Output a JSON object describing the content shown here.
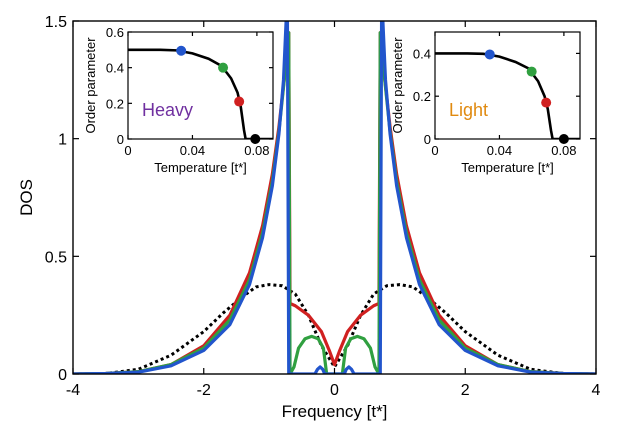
{
  "chart_data": [
    {
      "type": "line",
      "xlabel": "Frequency [t*]",
      "ylabel": "DOS",
      "xlim": [
        -4,
        4
      ],
      "ylim": [
        0,
        1.5
      ],
      "xticks": [
        -4,
        -2,
        0,
        2,
        4
      ],
      "yticks": [
        0,
        0.5,
        1,
        1.5
      ],
      "xtick_labels": [
        "-4",
        "-2",
        "0",
        "2",
        "4"
      ],
      "ytick_labels": [
        "0",
        "0.5",
        "1",
        "1.5"
      ],
      "series": [
        {
          "color": "#000000",
          "style": "dashed",
          "points": [
            [
              -4,
              0
            ],
            [
              -3.5,
              0.002
            ],
            [
              -3,
              0.02
            ],
            [
              -2.5,
              0.08
            ],
            [
              -2,
              0.18
            ],
            [
              -1.7,
              0.26
            ],
            [
              -1.4,
              0.33
            ],
            [
              -1.2,
              0.37
            ],
            [
              -1.0,
              0.38
            ],
            [
              -0.8,
              0.375
            ],
            [
              -0.6,
              0.34
            ],
            [
              -0.4,
              0.25
            ],
            [
              -0.2,
              0.12
            ],
            [
              0,
              0.03
            ],
            [
              0.2,
              0.12
            ],
            [
              0.4,
              0.25
            ],
            [
              0.6,
              0.34
            ],
            [
              0.8,
              0.375
            ],
            [
              1.0,
              0.38
            ],
            [
              1.2,
              0.37
            ],
            [
              1.4,
              0.33
            ],
            [
              1.7,
              0.26
            ],
            [
              2,
              0.18
            ],
            [
              2.5,
              0.08
            ],
            [
              3,
              0.02
            ],
            [
              3.5,
              0.002
            ],
            [
              4,
              0
            ]
          ]
        },
        {
          "color": "#d02020",
          "style": "solid",
          "points": [
            [
              -4,
              0
            ],
            [
              -3.5,
              0.002
            ],
            [
              -3,
              0.01
            ],
            [
              -2.5,
              0.04
            ],
            [
              -2,
              0.12
            ],
            [
              -1.6,
              0.25
            ],
            [
              -1.3,
              0.43
            ],
            [
              -1.1,
              0.63
            ],
            [
              -0.95,
              0.85
            ],
            [
              -0.85,
              1.05
            ],
            [
              -0.75,
              1.3
            ],
            [
              -0.7,
              1.45
            ],
            [
              -0.68,
              0.3
            ],
            [
              -0.6,
              0.29
            ],
            [
              -0.4,
              0.25
            ],
            [
              -0.2,
              0.18
            ],
            [
              -0.08,
              0.1
            ],
            [
              0,
              0.04
            ],
            [
              0.08,
              0.1
            ],
            [
              0.2,
              0.18
            ],
            [
              0.4,
              0.25
            ],
            [
              0.6,
              0.29
            ],
            [
              0.68,
              0.3
            ],
            [
              0.7,
              1.45
            ],
            [
              0.75,
              1.3
            ],
            [
              0.85,
              1.05
            ],
            [
              0.95,
              0.85
            ],
            [
              1.1,
              0.63
            ],
            [
              1.3,
              0.43
            ],
            [
              1.6,
              0.25
            ],
            [
              2,
              0.12
            ],
            [
              2.5,
              0.04
            ],
            [
              3,
              0.01
            ],
            [
              3.5,
              0.002
            ],
            [
              4,
              0
            ]
          ]
        },
        {
          "color": "#30a040",
          "style": "solid",
          "points": [
            [
              -4,
              0
            ],
            [
              -3.5,
              0.002
            ],
            [
              -3,
              0.01
            ],
            [
              -2.5,
              0.04
            ],
            [
              -2,
              0.11
            ],
            [
              -1.6,
              0.23
            ],
            [
              -1.3,
              0.4
            ],
            [
              -1.1,
              0.6
            ],
            [
              -0.95,
              0.82
            ],
            [
              -0.85,
              1.03
            ],
            [
              -0.75,
              1.3
            ],
            [
              -0.7,
              1.45
            ],
            [
              -0.68,
              0
            ],
            [
              -0.62,
              0.03
            ],
            [
              -0.55,
              0.11
            ],
            [
              -0.45,
              0.15
            ],
            [
              -0.35,
              0.16
            ],
            [
              -0.25,
              0.15
            ],
            [
              -0.17,
              0.11
            ],
            [
              -0.12,
              0
            ],
            [
              0.12,
              0
            ],
            [
              0.17,
              0.11
            ],
            [
              0.25,
              0.15
            ],
            [
              0.35,
              0.16
            ],
            [
              0.45,
              0.15
            ],
            [
              0.55,
              0.11
            ],
            [
              0.62,
              0.03
            ],
            [
              0.68,
              0
            ],
            [
              0.7,
              1.45
            ],
            [
              0.75,
              1.3
            ],
            [
              0.85,
              1.03
            ],
            [
              0.95,
              0.82
            ],
            [
              1.1,
              0.6
            ],
            [
              1.3,
              0.4
            ],
            [
              1.6,
              0.23
            ],
            [
              2,
              0.11
            ],
            [
              2.5,
              0.04
            ],
            [
              3,
              0.01
            ],
            [
              3.5,
              0.002
            ],
            [
              4,
              0
            ]
          ]
        },
        {
          "color": "#2255cc",
          "style": "solid",
          "points": [
            [
              -4,
              0
            ],
            [
              -3.5,
              0.002
            ],
            [
              -3,
              0.008
            ],
            [
              -2.5,
              0.035
            ],
            [
              -2,
              0.1
            ],
            [
              -1.6,
              0.21
            ],
            [
              -1.3,
              0.38
            ],
            [
              -1.1,
              0.58
            ],
            [
              -0.95,
              0.8
            ],
            [
              -0.85,
              1.02
            ],
            [
              -0.78,
              1.25
            ],
            [
              -0.74,
              1.5
            ],
            [
              -0.72,
              1.5
            ],
            [
              -0.7,
              0
            ],
            [
              -0.3,
              0
            ],
            [
              -0.26,
              0.02
            ],
            [
              -0.22,
              0.03
            ],
            [
              -0.18,
              0.02
            ],
            [
              -0.15,
              0
            ],
            [
              0.15,
              0
            ],
            [
              0.18,
              0.02
            ],
            [
              0.22,
              0.03
            ],
            [
              0.26,
              0.02
            ],
            [
              0.3,
              0
            ],
            [
              0.7,
              0
            ],
            [
              0.72,
              1.5
            ],
            [
              0.74,
              1.5
            ],
            [
              0.78,
              1.25
            ],
            [
              0.85,
              1.02
            ],
            [
              0.95,
              0.8
            ],
            [
              1.1,
              0.58
            ],
            [
              1.3,
              0.38
            ],
            [
              1.6,
              0.21
            ],
            [
              2,
              0.1
            ],
            [
              2.5,
              0.035
            ],
            [
              3,
              0.008
            ],
            [
              3.5,
              0.002
            ],
            [
              4,
              0
            ]
          ]
        }
      ]
    },
    {
      "type": "line",
      "xlabel": "Temperature [t*]",
      "ylabel": "Order parameter",
      "annotation": "Heavy",
      "annotation_color": "#7030a0",
      "xlim": [
        0,
        0.09
      ],
      "ylim": [
        0,
        0.6
      ],
      "xticks": [
        0,
        0.04,
        0.08
      ],
      "yticks": [
        0,
        0.2,
        0.4,
        0.6
      ],
      "xtick_labels": [
        "0",
        "0.04",
        "0.08"
      ],
      "ytick_labels": [
        "0",
        "0.2",
        "0.4",
        "0.6"
      ],
      "curve": [
        [
          0,
          0.5
        ],
        [
          0.01,
          0.5
        ],
        [
          0.02,
          0.5
        ],
        [
          0.03,
          0.497
        ],
        [
          0.04,
          0.48
        ],
        [
          0.05,
          0.45
        ],
        [
          0.058,
          0.41
        ],
        [
          0.064,
          0.34
        ],
        [
          0.068,
          0.26
        ],
        [
          0.07,
          0.18
        ],
        [
          0.072,
          0.05
        ],
        [
          0.073,
          0
        ],
        [
          0.09,
          0
        ]
      ],
      "markers": [
        {
          "x": 0.033,
          "y": 0.495,
          "color": "#2255cc"
        },
        {
          "x": 0.059,
          "y": 0.4,
          "color": "#30a040"
        },
        {
          "x": 0.069,
          "y": 0.21,
          "color": "#d02020"
        },
        {
          "x": 0.079,
          "y": 0,
          "color": "#000000"
        }
      ]
    },
    {
      "type": "line",
      "xlabel": "Temperature [t*]",
      "ylabel": "Order parameter",
      "annotation": "Light",
      "annotation_color": "#e08a10",
      "xlim": [
        0,
        0.09
      ],
      "ylim": [
        0,
        0.5
      ],
      "xticks": [
        0,
        0.04,
        0.08
      ],
      "yticks": [
        0,
        0.2,
        0.4
      ],
      "xtick_labels": [
        "0",
        "0.04",
        "0.08"
      ],
      "ytick_labels": [
        "0",
        "0.2",
        "0.4"
      ],
      "curve": [
        [
          0,
          0.4
        ],
        [
          0.01,
          0.4
        ],
        [
          0.02,
          0.4
        ],
        [
          0.03,
          0.398
        ],
        [
          0.04,
          0.385
        ],
        [
          0.05,
          0.36
        ],
        [
          0.058,
          0.33
        ],
        [
          0.064,
          0.27
        ],
        [
          0.068,
          0.2
        ],
        [
          0.07,
          0.14
        ],
        [
          0.072,
          0.04
        ],
        [
          0.073,
          0
        ],
        [
          0.09,
          0
        ]
      ],
      "markers": [
        {
          "x": 0.034,
          "y": 0.395,
          "color": "#2255cc"
        },
        {
          "x": 0.06,
          "y": 0.315,
          "color": "#30a040"
        },
        {
          "x": 0.069,
          "y": 0.17,
          "color": "#d02020"
        },
        {
          "x": 0.08,
          "y": 0,
          "color": "#000000"
        }
      ]
    }
  ]
}
